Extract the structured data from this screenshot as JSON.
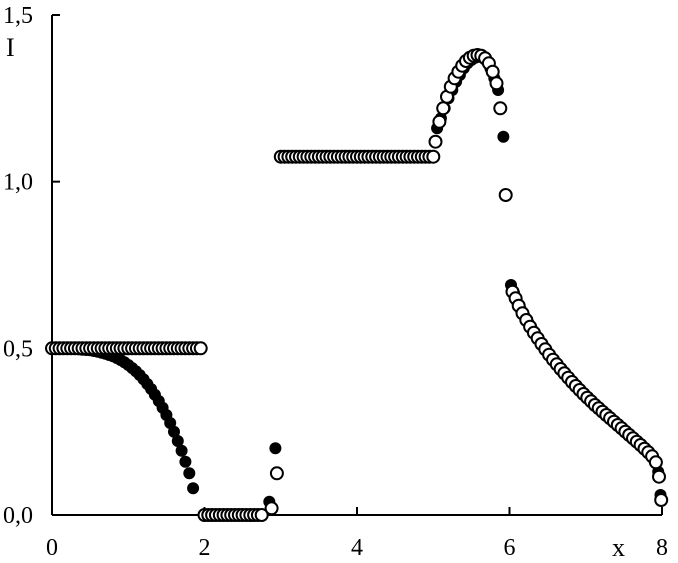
{
  "chart_data": {
    "type": "scatter",
    "title": "",
    "xlabel": "x",
    "ylabel": "I",
    "xlim": [
      0,
      8
    ],
    "ylim": [
      0,
      1.5
    ],
    "x_ticks": [
      {
        "value": 0,
        "label": "0"
      },
      {
        "value": 2,
        "label": "2"
      },
      {
        "value": 4,
        "label": "4"
      },
      {
        "value": 6,
        "label": "6"
      },
      {
        "value": 8,
        "label": "8"
      }
    ],
    "y_ticks": [
      {
        "value": 0,
        "label": "0,0"
      },
      {
        "value": 0.5,
        "label": "0,5"
      },
      {
        "value": 1.0,
        "label": "1,0"
      },
      {
        "value": 1.5,
        "label": "1,5"
      }
    ],
    "grid": false,
    "legend": false,
    "colors": {
      "filled": "#000000",
      "hollow_fill": "#ffffff",
      "hollow_stroke": "#000000"
    },
    "series": [
      {
        "marker": "filled-circle",
        "points": [
          [
            0.0,
            0.5
          ],
          [
            0.05,
            0.5
          ],
          [
            0.1,
            0.5
          ],
          [
            0.15,
            0.5
          ],
          [
            0.2,
            0.499
          ],
          [
            0.25,
            0.499
          ],
          [
            0.3,
            0.498
          ],
          [
            0.35,
            0.497
          ],
          [
            0.4,
            0.496
          ],
          [
            0.45,
            0.495
          ],
          [
            0.5,
            0.494
          ],
          [
            0.55,
            0.492
          ],
          [
            0.6,
            0.49
          ],
          [
            0.65,
            0.487
          ],
          [
            0.7,
            0.484
          ],
          [
            0.75,
            0.48
          ],
          [
            0.8,
            0.476
          ],
          [
            0.85,
            0.471
          ],
          [
            0.9,
            0.465
          ],
          [
            0.95,
            0.458
          ],
          [
            1.0,
            0.45
          ],
          [
            1.05,
            0.441
          ],
          [
            1.1,
            0.431
          ],
          [
            1.15,
            0.42
          ],
          [
            1.2,
            0.407
          ],
          [
            1.25,
            0.393
          ],
          [
            1.3,
            0.378
          ],
          [
            1.35,
            0.361
          ],
          [
            1.4,
            0.342
          ],
          [
            1.45,
            0.322
          ],
          [
            1.5,
            0.3
          ],
          [
            1.55,
            0.276
          ],
          [
            1.6,
            0.25
          ],
          [
            1.65,
            0.222
          ],
          [
            1.7,
            0.193
          ],
          [
            1.75,
            0.16
          ],
          [
            1.8,
            0.125
          ],
          [
            1.85,
            0.08
          ],
          [
            2.0,
            0.0
          ],
          [
            2.05,
            0.0
          ],
          [
            2.1,
            0.0
          ],
          [
            2.15,
            0.0
          ],
          [
            2.2,
            0.0
          ],
          [
            2.25,
            0.0
          ],
          [
            2.3,
            0.0
          ],
          [
            2.35,
            0.0
          ],
          [
            2.4,
            0.0
          ],
          [
            2.45,
            0.0
          ],
          [
            2.5,
            0.0
          ],
          [
            2.55,
            0.0
          ],
          [
            2.6,
            0.0
          ],
          [
            2.65,
            0.0
          ],
          [
            2.7,
            0.0
          ],
          [
            2.75,
            0.0
          ],
          [
            2.85,
            0.04
          ],
          [
            2.93,
            0.2
          ],
          [
            3.0,
            1.075
          ],
          [
            3.05,
            1.075
          ],
          [
            3.1,
            1.075
          ],
          [
            3.15,
            1.075
          ],
          [
            3.2,
            1.075
          ],
          [
            3.25,
            1.075
          ],
          [
            3.3,
            1.075
          ],
          [
            3.35,
            1.075
          ],
          [
            3.4,
            1.075
          ],
          [
            3.45,
            1.075
          ],
          [
            3.5,
            1.075
          ],
          [
            3.55,
            1.075
          ],
          [
            3.6,
            1.075
          ],
          [
            3.65,
            1.075
          ],
          [
            3.7,
            1.075
          ],
          [
            3.75,
            1.075
          ],
          [
            3.8,
            1.075
          ],
          [
            3.85,
            1.075
          ],
          [
            3.9,
            1.075
          ],
          [
            3.95,
            1.075
          ],
          [
            4.0,
            1.075
          ],
          [
            4.05,
            1.075
          ],
          [
            4.1,
            1.075
          ],
          [
            4.15,
            1.075
          ],
          [
            4.2,
            1.075
          ],
          [
            4.25,
            1.075
          ],
          [
            4.3,
            1.075
          ],
          [
            4.35,
            1.075
          ],
          [
            4.4,
            1.075
          ],
          [
            4.45,
            1.075
          ],
          [
            4.5,
            1.075
          ],
          [
            4.55,
            1.075
          ],
          [
            4.6,
            1.075
          ],
          [
            4.65,
            1.075
          ],
          [
            4.7,
            1.075
          ],
          [
            4.75,
            1.075
          ],
          [
            4.8,
            1.075
          ],
          [
            4.85,
            1.075
          ],
          [
            4.9,
            1.075
          ],
          [
            4.95,
            1.075
          ],
          [
            5.05,
            1.16
          ],
          [
            5.1,
            1.19
          ],
          [
            5.15,
            1.22
          ],
          [
            5.2,
            1.25
          ],
          [
            5.25,
            1.275
          ],
          [
            5.3,
            1.3
          ],
          [
            5.35,
            1.32
          ],
          [
            5.4,
            1.34
          ],
          [
            5.45,
            1.355
          ],
          [
            5.5,
            1.365
          ],
          [
            5.55,
            1.372
          ],
          [
            5.6,
            1.375
          ],
          [
            5.65,
            1.372
          ],
          [
            5.7,
            1.362
          ],
          [
            5.75,
            1.34
          ],
          [
            5.8,
            1.31
          ],
          [
            5.85,
            1.275
          ],
          [
            5.92,
            1.135
          ],
          [
            6.02,
            0.69
          ],
          [
            6.06,
            0.665
          ],
          [
            6.1,
            0.64
          ],
          [
            6.15,
            0.615
          ],
          [
            6.2,
            0.595
          ],
          [
            6.25,
            0.575
          ],
          [
            6.3,
            0.555
          ],
          [
            6.35,
            0.537
          ],
          [
            6.4,
            0.52
          ],
          [
            6.45,
            0.503
          ],
          [
            6.5,
            0.487
          ],
          [
            6.55,
            0.472
          ],
          [
            6.6,
            0.457
          ],
          [
            6.65,
            0.443
          ],
          [
            6.7,
            0.43
          ],
          [
            6.75,
            0.417
          ],
          [
            6.8,
            0.404
          ],
          [
            6.85,
            0.392
          ],
          [
            6.9,
            0.38
          ],
          [
            6.95,
            0.368
          ],
          [
            7.0,
            0.357
          ],
          [
            7.05,
            0.346
          ],
          [
            7.1,
            0.335
          ],
          [
            7.15,
            0.324
          ],
          [
            7.2,
            0.314
          ],
          [
            7.25,
            0.304
          ],
          [
            7.3,
            0.294
          ],
          [
            7.35,
            0.284
          ],
          [
            7.4,
            0.274
          ],
          [
            7.45,
            0.264
          ],
          [
            7.5,
            0.254
          ],
          [
            7.55,
            0.244
          ],
          [
            7.6,
            0.234
          ],
          [
            7.65,
            0.224
          ],
          [
            7.7,
            0.214
          ],
          [
            7.75,
            0.203
          ],
          [
            7.8,
            0.192
          ],
          [
            7.85,
            0.18
          ],
          [
            7.9,
            0.163
          ],
          [
            7.95,
            0.13
          ],
          [
            7.98,
            0.06
          ]
        ]
      },
      {
        "marker": "hollow-circle",
        "points": [
          [
            0.0,
            0.5
          ],
          [
            0.05,
            0.5
          ],
          [
            0.1,
            0.5
          ],
          [
            0.15,
            0.5
          ],
          [
            0.2,
            0.5
          ],
          [
            0.25,
            0.5
          ],
          [
            0.3,
            0.5
          ],
          [
            0.35,
            0.5
          ],
          [
            0.4,
            0.5
          ],
          [
            0.45,
            0.5
          ],
          [
            0.5,
            0.5
          ],
          [
            0.55,
            0.5
          ],
          [
            0.6,
            0.5
          ],
          [
            0.65,
            0.5
          ],
          [
            0.7,
            0.5
          ],
          [
            0.75,
            0.5
          ],
          [
            0.8,
            0.5
          ],
          [
            0.85,
            0.5
          ],
          [
            0.9,
            0.5
          ],
          [
            0.95,
            0.5
          ],
          [
            1.0,
            0.5
          ],
          [
            1.05,
            0.5
          ],
          [
            1.1,
            0.5
          ],
          [
            1.15,
            0.5
          ],
          [
            1.2,
            0.5
          ],
          [
            1.25,
            0.5
          ],
          [
            1.3,
            0.5
          ],
          [
            1.35,
            0.5
          ],
          [
            1.4,
            0.5
          ],
          [
            1.45,
            0.5
          ],
          [
            1.5,
            0.5
          ],
          [
            1.55,
            0.5
          ],
          [
            1.6,
            0.5
          ],
          [
            1.65,
            0.5
          ],
          [
            1.7,
            0.5
          ],
          [
            1.75,
            0.5
          ],
          [
            1.8,
            0.5
          ],
          [
            1.85,
            0.5
          ],
          [
            1.9,
            0.5
          ],
          [
            1.95,
            0.5
          ],
          [
            2.0,
            0.0
          ],
          [
            2.05,
            0.0
          ],
          [
            2.1,
            0.0
          ],
          [
            2.15,
            0.0
          ],
          [
            2.2,
            0.0
          ],
          [
            2.25,
            0.0
          ],
          [
            2.3,
            0.0
          ],
          [
            2.35,
            0.0
          ],
          [
            2.4,
            0.0
          ],
          [
            2.45,
            0.0
          ],
          [
            2.5,
            0.0
          ],
          [
            2.55,
            0.0
          ],
          [
            2.6,
            0.0
          ],
          [
            2.65,
            0.0
          ],
          [
            2.7,
            0.0
          ],
          [
            2.75,
            0.0
          ],
          [
            2.88,
            0.02
          ],
          [
            2.95,
            0.125
          ],
          [
            3.0,
            1.075
          ],
          [
            3.05,
            1.075
          ],
          [
            3.1,
            1.075
          ],
          [
            3.15,
            1.075
          ],
          [
            3.2,
            1.075
          ],
          [
            3.25,
            1.075
          ],
          [
            3.3,
            1.075
          ],
          [
            3.35,
            1.075
          ],
          [
            3.4,
            1.075
          ],
          [
            3.45,
            1.075
          ],
          [
            3.5,
            1.075
          ],
          [
            3.55,
            1.075
          ],
          [
            3.6,
            1.075
          ],
          [
            3.65,
            1.075
          ],
          [
            3.7,
            1.075
          ],
          [
            3.75,
            1.075
          ],
          [
            3.8,
            1.075
          ],
          [
            3.85,
            1.075
          ],
          [
            3.9,
            1.075
          ],
          [
            3.95,
            1.075
          ],
          [
            4.0,
            1.075
          ],
          [
            4.05,
            1.075
          ],
          [
            4.1,
            1.075
          ],
          [
            4.15,
            1.075
          ],
          [
            4.2,
            1.075
          ],
          [
            4.25,
            1.075
          ],
          [
            4.3,
            1.075
          ],
          [
            4.35,
            1.075
          ],
          [
            4.4,
            1.075
          ],
          [
            4.45,
            1.075
          ],
          [
            4.5,
            1.075
          ],
          [
            4.55,
            1.075
          ],
          [
            4.6,
            1.075
          ],
          [
            4.65,
            1.075
          ],
          [
            4.7,
            1.075
          ],
          [
            4.75,
            1.075
          ],
          [
            4.8,
            1.075
          ],
          [
            4.85,
            1.075
          ],
          [
            4.9,
            1.075
          ],
          [
            4.95,
            1.075
          ],
          [
            5.0,
            1.075
          ],
          [
            5.03,
            1.12
          ],
          [
            5.08,
            1.18
          ],
          [
            5.13,
            1.22
          ],
          [
            5.18,
            1.255
          ],
          [
            5.23,
            1.285
          ],
          [
            5.28,
            1.31
          ],
          [
            5.33,
            1.33
          ],
          [
            5.38,
            1.348
          ],
          [
            5.43,
            1.362
          ],
          [
            5.48,
            1.372
          ],
          [
            5.53,
            1.378
          ],
          [
            5.58,
            1.38
          ],
          [
            5.63,
            1.378
          ],
          [
            5.68,
            1.37
          ],
          [
            5.73,
            1.355
          ],
          [
            5.78,
            1.33
          ],
          [
            5.83,
            1.295
          ],
          [
            5.88,
            1.22
          ],
          [
            5.95,
            0.96
          ],
          [
            6.04,
            0.67
          ],
          [
            6.08,
            0.65
          ],
          [
            6.12,
            0.628
          ],
          [
            6.17,
            0.605
          ],
          [
            6.22,
            0.585
          ],
          [
            6.27,
            0.565
          ],
          [
            6.32,
            0.547
          ],
          [
            6.37,
            0.53
          ],
          [
            6.42,
            0.513
          ],
          [
            6.47,
            0.497
          ],
          [
            6.52,
            0.481
          ],
          [
            6.57,
            0.466
          ],
          [
            6.62,
            0.452
          ],
          [
            6.67,
            0.438
          ],
          [
            6.72,
            0.425
          ],
          [
            6.77,
            0.412
          ],
          [
            6.82,
            0.399
          ],
          [
            6.87,
            0.387
          ],
          [
            6.92,
            0.375
          ],
          [
            6.97,
            0.363
          ],
          [
            7.02,
            0.352
          ],
          [
            7.07,
            0.341
          ],
          [
            7.12,
            0.33
          ],
          [
            7.17,
            0.32
          ],
          [
            7.22,
            0.31
          ],
          [
            7.27,
            0.3
          ],
          [
            7.32,
            0.29
          ],
          [
            7.37,
            0.28
          ],
          [
            7.42,
            0.27
          ],
          [
            7.47,
            0.26
          ],
          [
            7.52,
            0.25
          ],
          [
            7.57,
            0.24
          ],
          [
            7.62,
            0.23
          ],
          [
            7.67,
            0.22
          ],
          [
            7.72,
            0.21
          ],
          [
            7.77,
            0.199
          ],
          [
            7.82,
            0.188
          ],
          [
            7.87,
            0.176
          ],
          [
            7.92,
            0.158
          ],
          [
            7.96,
            0.115
          ],
          [
            7.99,
            0.045
          ]
        ]
      }
    ]
  }
}
